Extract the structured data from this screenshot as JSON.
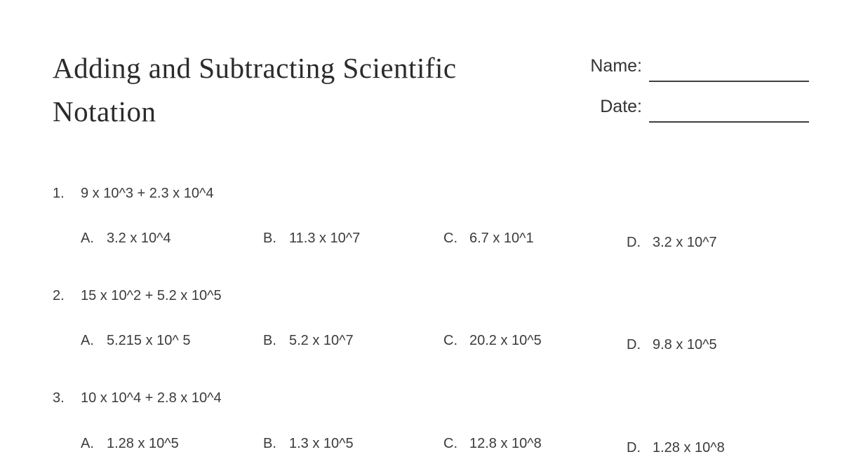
{
  "worksheet": {
    "title": "Adding and Subtracting Scientific Notation",
    "name_label": "Name:",
    "date_label": "Date:"
  },
  "questions": [
    {
      "number": "1.",
      "expression": "9 x 10^3 + 2.3 x 10^4",
      "options": [
        {
          "letter": "A.",
          "value": "3.2 x 10^4"
        },
        {
          "letter": "B.",
          "value": "11.3 x 10^7"
        },
        {
          "letter": "C.",
          "value": "6.7 x 10^1"
        },
        {
          "letter": "D.",
          "value": "3.2 x 10^7"
        }
      ]
    },
    {
      "number": "2.",
      "expression": "15 x 10^2 + 5.2 x 10^5",
      "options": [
        {
          "letter": "A.",
          "value": "5.215 x 10^ 5"
        },
        {
          "letter": "B.",
          "value": "5.2 x 10^7"
        },
        {
          "letter": "C.",
          "value": "20.2 x 10^5"
        },
        {
          "letter": "D.",
          "value": "9.8 x 10^5"
        }
      ]
    },
    {
      "number": "3.",
      "expression": "10 x 10^4 + 2.8 x 10^4",
      "options": [
        {
          "letter": "A.",
          "value": "1.28 x 10^5"
        },
        {
          "letter": "B.",
          "value": "1.3 x 10^5"
        },
        {
          "letter": "C.",
          "value": "12.8 x 10^8"
        },
        {
          "letter": "D.",
          "value": "1.28 x 10^8"
        }
      ]
    }
  ],
  "colors": {
    "background": "#ffffff",
    "title_text": "#2b2b2b",
    "body_text": "#3b3b3b",
    "blank_line": "#3f3f3f"
  }
}
